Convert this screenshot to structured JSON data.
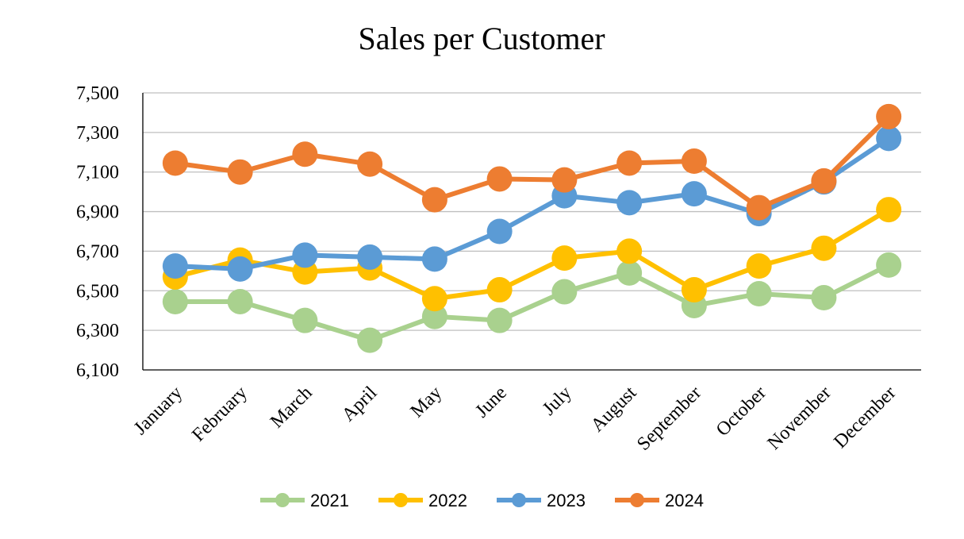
{
  "chart_data": {
    "type": "line",
    "title": "Sales per Customer",
    "xlabel": "",
    "ylabel": "",
    "ylim": [
      6100,
      7500
    ],
    "yticks": [
      6100,
      6300,
      6500,
      6700,
      6900,
      7100,
      7300,
      7500
    ],
    "ytick_labels": [
      "6,100",
      "6,300",
      "6,500",
      "6,700",
      "6,900",
      "7,100",
      "7,300",
      "7,500"
    ],
    "grid": true,
    "legend_position": "bottom",
    "categories": [
      "January",
      "February",
      "March",
      "April",
      "May",
      "June",
      "July",
      "August",
      "September",
      "October",
      "November",
      "December"
    ],
    "series": [
      {
        "name": "2021",
        "color": "#A9D18E",
        "values": [
          6445,
          6445,
          6350,
          6250,
          6370,
          6350,
          6495,
          6590,
          6425,
          6485,
          6465,
          6630
        ]
      },
      {
        "name": "2022",
        "color": "#FFC000",
        "values": [
          6570,
          6655,
          6595,
          6615,
          6460,
          6505,
          6665,
          6700,
          6505,
          6625,
          6715,
          6910
        ]
      },
      {
        "name": "2023",
        "color": "#5B9BD5",
        "values": [
          6625,
          6610,
          6680,
          6670,
          6660,
          6800,
          6980,
          6945,
          6990,
          6890,
          7050,
          7270
        ]
      },
      {
        "name": "2024",
        "color": "#ED7D31",
        "values": [
          7145,
          7100,
          7190,
          7140,
          6960,
          7065,
          7060,
          7145,
          7155,
          6920,
          7055,
          7380
        ]
      }
    ]
  }
}
